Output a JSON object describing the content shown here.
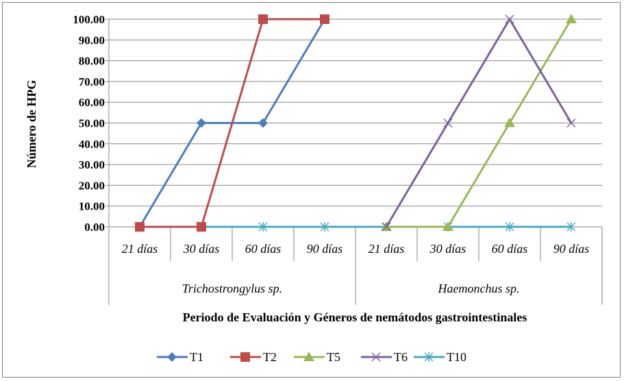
{
  "chart_data": {
    "type": "line",
    "ylabel": "Número de HPG",
    "xlabel": "Periodo de Evaluación y Géneros de nemátodos gastrointestinales",
    "ylim": [
      0,
      100
    ],
    "ytick_labels": [
      "0.00",
      "10.00",
      "20.00",
      "30.00",
      "40.00",
      "50.00",
      "60.00",
      "70.00",
      "80.00",
      "90.00",
      "100.00"
    ],
    "categories": [
      "21 días",
      "30 días",
      "60 días",
      "90 días",
      "21 días",
      "30 días",
      "60 días",
      "90 días"
    ],
    "groups": [
      {
        "label": "Trichostrongylus sp.",
        "span": 4
      },
      {
        "label": "Haemonchus sp.",
        "span": 4
      }
    ],
    "grid": true,
    "legend_position": "bottom",
    "series": [
      {
        "name": "T1",
        "color": "#4a7ebb",
        "marker": "diamond",
        "values": [
          0,
          50,
          50,
          100,
          null,
          null,
          null,
          null
        ]
      },
      {
        "name": "T2",
        "color": "#be4b48",
        "marker": "square",
        "values": [
          0,
          0,
          100,
          100,
          null,
          null,
          null,
          null
        ]
      },
      {
        "name": "T5",
        "color": "#98b954",
        "marker": "triangle",
        "values": [
          null,
          null,
          null,
          null,
          0,
          0,
          50,
          100
        ]
      },
      {
        "name": "T6",
        "color": "#7d60a0",
        "marker": "x",
        "values": [
          null,
          null,
          null,
          null,
          0,
          50,
          100,
          50
        ]
      },
      {
        "name": "T10",
        "color": "#46aac5",
        "marker": "star",
        "values": [
          0,
          0,
          0,
          0,
          0,
          0,
          0,
          0
        ]
      }
    ]
  }
}
